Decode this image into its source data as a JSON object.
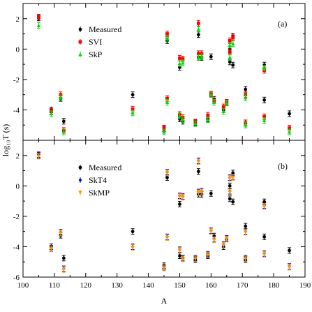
{
  "chart_data": [
    {
      "type": "scatter",
      "panel_label": "(a)",
      "xlabel": "A",
      "ylabel": "log₁₀T (s)",
      "xlim": [
        100,
        190
      ],
      "ylim": [
        -6,
        3
      ],
      "x_ticks": [
        "100",
        "110",
        "120",
        "130",
        "140",
        "150",
        "160",
        "170",
        "180",
        "190"
      ],
      "y_ticks": [
        "-4",
        "-2",
        "0",
        "2"
      ],
      "legend_position": "top-left",
      "series": [
        {
          "name": "Measured",
          "color": "#000000",
          "marker": "circle",
          "points": [
            [
              105,
              2.05
            ],
            [
              109,
              -4.0
            ],
            [
              112,
              -3.25
            ],
            [
              113,
              -4.75
            ],
            [
              135,
              -3.0
            ],
            [
              145,
              -5.25
            ],
            [
              146,
              0.55
            ],
            [
              150,
              -1.2
            ],
            [
              150,
              -4.6
            ],
            [
              151,
              -4.75
            ],
            [
              155,
              -4.85
            ],
            [
              156,
              0.95
            ],
            [
              156,
              -0.55
            ],
            [
              157,
              -0.55
            ],
            [
              159,
              -4.6
            ],
            [
              160,
              -0.5
            ],
            [
              161,
              -3.3
            ],
            [
              164,
              -4.0
            ],
            [
              165,
              -3.5
            ],
            [
              166,
              -0.85
            ],
            [
              166,
              0.0
            ],
            [
              167,
              -1.05
            ],
            [
              167,
              0.85
            ],
            [
              171,
              -2.65
            ],
            [
              171,
              -4.85
            ],
            [
              177,
              -3.35
            ],
            [
              177,
              -1.05
            ],
            [
              185,
              -4.25
            ]
          ]
        },
        {
          "name": "SVI",
          "color": "#ff0000",
          "marker": "square",
          "points": [
            [
              105,
              2.1
            ],
            [
              109,
              -4.1
            ],
            [
              112,
              -3.0
            ],
            [
              113,
              -5.35
            ],
            [
              135,
              -3.95
            ],
            [
              145,
              -5.2
            ],
            [
              146,
              1.0
            ],
            [
              146,
              -3.25
            ],
            [
              150,
              -0.6
            ],
            [
              150,
              -4.3
            ],
            [
              151,
              -0.65
            ],
            [
              151,
              -4.5
            ],
            [
              155,
              -4.8
            ],
            [
              156,
              1.7
            ],
            [
              156,
              -0.3
            ],
            [
              157,
              -0.3
            ],
            [
              159,
              -4.35
            ],
            [
              160,
              -2.95
            ],
            [
              161,
              -3.4
            ],
            [
              164,
              -3.8
            ],
            [
              165,
              -3.5
            ],
            [
              166,
              -0.2
            ],
            [
              166,
              0.55
            ],
            [
              167,
              0.75
            ],
            [
              171,
              -3.0
            ],
            [
              171,
              -4.85
            ],
            [
              177,
              -4.45
            ],
            [
              177,
              -1.4
            ],
            [
              185,
              -5.2
            ]
          ]
        },
        {
          "name": "SkP",
          "color": "#00dd00",
          "marker": "triangle",
          "points": [
            [
              105,
              1.55
            ],
            [
              109,
              -4.25
            ],
            [
              112,
              -3.2
            ],
            [
              113,
              -5.45
            ],
            [
              135,
              -4.2
            ],
            [
              145,
              -5.45
            ],
            [
              146,
              0.7
            ],
            [
              146,
              -3.5
            ],
            [
              150,
              -0.95
            ],
            [
              150,
              -4.4
            ],
            [
              151,
              -0.9
            ],
            [
              151,
              -4.65
            ],
            [
              155,
              -4.9
            ],
            [
              156,
              1.3
            ],
            [
              156,
              -0.55
            ],
            [
              157,
              -0.5
            ],
            [
              159,
              -4.65
            ],
            [
              160,
              -3.0
            ],
            [
              161,
              -3.5
            ],
            [
              164,
              -4.1
            ],
            [
              165,
              -3.55
            ],
            [
              166,
              -0.55
            ],
            [
              166,
              0.25
            ],
            [
              167,
              0.35
            ],
            [
              171,
              -3.2
            ],
            [
              171,
              -5.0
            ],
            [
              177,
              -4.7
            ],
            [
              177,
              -1.25
            ],
            [
              185,
              -5.45
            ]
          ]
        }
      ]
    },
    {
      "type": "scatter",
      "panel_label": "(b)",
      "xlabel": "A",
      "ylabel": "log₁₀T (s)",
      "xlim": [
        100,
        190
      ],
      "ylim": [
        -6,
        3
      ],
      "x_ticks": [
        "100",
        "110",
        "120",
        "130",
        "140",
        "150",
        "160",
        "170",
        "180",
        "190"
      ],
      "y_ticks": [
        "-6",
        "-4",
        "-2",
        "0",
        "2"
      ],
      "legend_position": "top-left",
      "series": [
        {
          "name": "Measured",
          "color": "#000000",
          "marker": "circle",
          "points": [
            [
              105,
              2.05
            ],
            [
              109,
              -4.0
            ],
            [
              112,
              -3.25
            ],
            [
              113,
              -4.75
            ],
            [
              135,
              -3.0
            ],
            [
              145,
              -5.25
            ],
            [
              146,
              0.55
            ],
            [
              150,
              -1.2
            ],
            [
              150,
              -4.6
            ],
            [
              151,
              -4.75
            ],
            [
              155,
              -4.85
            ],
            [
              156,
              0.95
            ],
            [
              156,
              -0.55
            ],
            [
              157,
              -0.55
            ],
            [
              159,
              -4.6
            ],
            [
              160,
              -0.5
            ],
            [
              161,
              -3.3
            ],
            [
              164,
              -4.0
            ],
            [
              165,
              -3.5
            ],
            [
              166,
              -0.85
            ],
            [
              166,
              0.0
            ],
            [
              167,
              -1.05
            ],
            [
              167,
              0.85
            ],
            [
              171,
              -2.65
            ],
            [
              171,
              -4.85
            ],
            [
              177,
              -3.35
            ],
            [
              177,
              -1.05
            ],
            [
              185,
              -4.25
            ]
          ]
        },
        {
          "name": "SkT4",
          "color": "#0000cc",
          "marker": "diamond",
          "points": [
            [
              105,
              2.0
            ],
            [
              109,
              -4.1
            ],
            [
              112,
              -3.05
            ],
            [
              113,
              -5.45
            ],
            [
              135,
              -4.0
            ],
            [
              145,
              -5.35
            ],
            [
              146,
              0.9
            ],
            [
              146,
              -3.35
            ],
            [
              150,
              -0.65
            ],
            [
              150,
              -4.2
            ],
            [
              151,
              -0.7
            ],
            [
              151,
              -4.75
            ],
            [
              155,
              -4.75
            ],
            [
              156,
              1.65
            ],
            [
              156,
              -0.4
            ],
            [
              157,
              -0.35
            ],
            [
              159,
              -4.5
            ],
            [
              160,
              -2.95
            ],
            [
              161,
              -3.5
            ],
            [
              164,
              -3.85
            ],
            [
              165,
              -3.45
            ],
            [
              166,
              -0.35
            ],
            [
              166,
              0.55
            ],
            [
              167,
              0.6
            ],
            [
              171,
              -3.0
            ],
            [
              171,
              -4.75
            ],
            [
              177,
              -4.45
            ],
            [
              177,
              -1.3
            ],
            [
              185,
              -5.3
            ]
          ]
        },
        {
          "name": "SkMP",
          "color": "#ff9900",
          "marker": "triangle-down",
          "points": [
            [
              105,
              1.95
            ],
            [
              109,
              -4.15
            ],
            [
              112,
              -3.1
            ],
            [
              113,
              -5.5
            ],
            [
              135,
              -4.05
            ],
            [
              145,
              -5.4
            ],
            [
              146,
              0.85
            ],
            [
              146,
              -3.4
            ],
            [
              150,
              -0.7
            ],
            [
              150,
              -4.25
            ],
            [
              151,
              -0.75
            ],
            [
              151,
              -4.8
            ],
            [
              155,
              -4.8
            ],
            [
              156,
              1.6
            ],
            [
              156,
              -0.45
            ],
            [
              157,
              -0.4
            ],
            [
              159,
              -4.55
            ],
            [
              160,
              -3.0
            ],
            [
              161,
              -3.55
            ],
            [
              164,
              -3.9
            ],
            [
              165,
              -3.5
            ],
            [
              166,
              -0.4
            ],
            [
              166,
              0.5
            ],
            [
              167,
              0.55
            ],
            [
              171,
              -3.05
            ],
            [
              171,
              -4.8
            ],
            [
              177,
              -4.5
            ],
            [
              177,
              -1.35
            ],
            [
              185,
              -5.35
            ]
          ]
        }
      ]
    }
  ]
}
